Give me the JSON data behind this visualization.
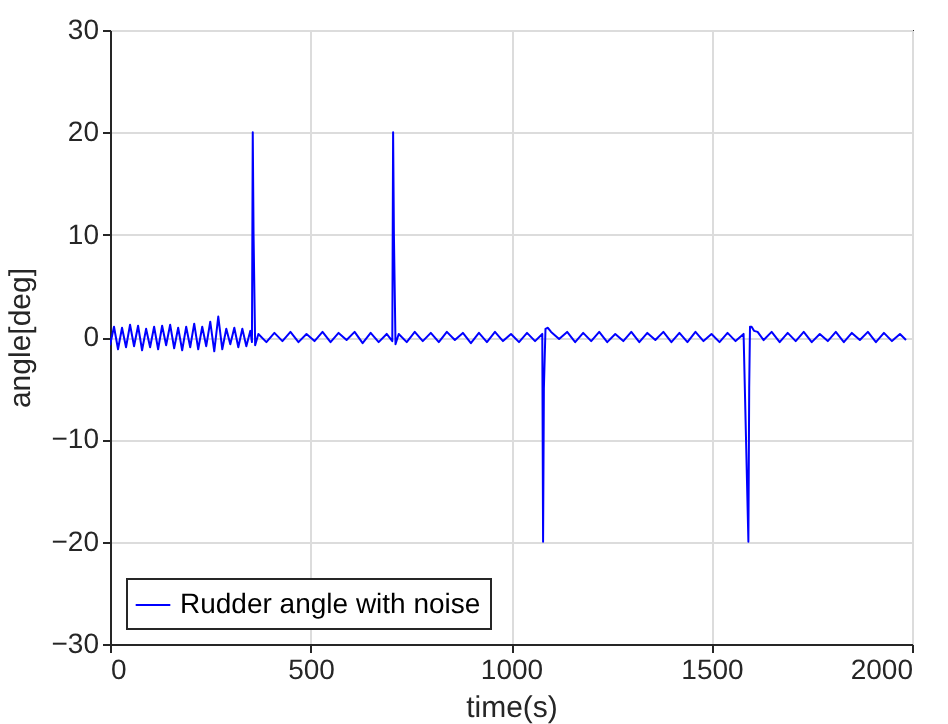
{
  "chart_data": {
    "type": "line",
    "xlabel": "time(s)",
    "ylabel": "angle[deg]",
    "xlim": [
      0,
      2000
    ],
    "ylim": [
      -30,
      30
    ],
    "xticks": [
      0,
      500,
      1000,
      1500,
      2000
    ],
    "yticks": [
      -30,
      -20,
      -10,
      0,
      10,
      20,
      30
    ],
    "grid": true,
    "legend": "bottom left",
    "line_style": "solid",
    "series": [
      {
        "name": "Rudder angle with noise",
        "color": "#0000ff",
        "x": [
          0,
          10,
          20,
          30,
          40,
          50,
          60,
          70,
          80,
          90,
          100,
          110,
          120,
          130,
          140,
          150,
          160,
          170,
          180,
          190,
          200,
          210,
          220,
          230,
          240,
          250,
          260,
          270,
          280,
          290,
          300,
          310,
          320,
          330,
          340,
          350,
          354,
          356,
          358,
          362,
          370,
          390,
          410,
          430,
          450,
          470,
          490,
          510,
          530,
          550,
          570,
          590,
          610,
          630,
          650,
          670,
          690,
          704,
          706,
          708,
          712,
          720,
          740,
          760,
          780,
          800,
          820,
          840,
          860,
          880,
          900,
          920,
          940,
          960,
          980,
          1000,
          1020,
          1040,
          1060,
          1078,
          1080,
          1082,
          1086,
          1092,
          1100,
          1120,
          1140,
          1160,
          1180,
          1200,
          1220,
          1240,
          1260,
          1280,
          1300,
          1320,
          1340,
          1360,
          1380,
          1400,
          1420,
          1440,
          1460,
          1480,
          1500,
          1520,
          1540,
          1560,
          1580,
          1592,
          1594,
          1596,
          1600,
          1606,
          1615,
          1630,
          1650,
          1670,
          1690,
          1710,
          1730,
          1750,
          1770,
          1790,
          1810,
          1830,
          1850,
          1870,
          1890,
          1910,
          1930,
          1950,
          1970,
          1985
        ],
        "values": [
          -0.8,
          1.0,
          -1.2,
          0.9,
          -1.0,
          1.2,
          -0.9,
          1.1,
          -1.3,
          0.8,
          -1.0,
          1.0,
          -1.2,
          1.1,
          -0.8,
          1.2,
          -1.1,
          0.9,
          -1.3,
          1.0,
          -1.0,
          1.3,
          -1.2,
          1.0,
          -0.9,
          1.5,
          -1.4,
          2.0,
          -1.2,
          0.8,
          -0.7,
          0.9,
          -1.0,
          0.8,
          -0.9,
          0.6,
          -0.5,
          20,
          10,
          -0.8,
          0.3,
          -0.5,
          0.4,
          -0.4,
          0.5,
          -0.5,
          0.3,
          -0.4,
          0.5,
          -0.5,
          0.4,
          -0.3,
          0.5,
          -0.6,
          0.4,
          -0.5,
          0.3,
          -0.4,
          20,
          10,
          -0.7,
          0.3,
          -0.5,
          0.5,
          -0.4,
          0.4,
          -0.5,
          0.5,
          -0.3,
          0.4,
          -0.6,
          0.4,
          -0.5,
          0.5,
          -0.4,
          0.3,
          -0.5,
          0.4,
          -0.4,
          0.3,
          -20,
          -5,
          0.8,
          0.9,
          0.5,
          -0.2,
          0.5,
          -0.5,
          0.4,
          -0.4,
          0.5,
          -0.5,
          0.3,
          -0.4,
          0.5,
          -0.5,
          0.4,
          -0.3,
          0.5,
          -0.5,
          0.4,
          -0.5,
          0.5,
          -0.4,
          0.3,
          -0.5,
          0.4,
          -0.4,
          0.3,
          -20,
          -5,
          1.0,
          1.0,
          0.6,
          0.5,
          -0.3,
          0.5,
          -0.5,
          0.4,
          -0.4,
          0.5,
          -0.5,
          0.3,
          -0.4,
          0.5,
          -0.5,
          0.4,
          -0.3,
          0.5,
          -0.5,
          0.4,
          -0.4,
          0.3,
          -0.3
        ]
      }
    ]
  }
}
